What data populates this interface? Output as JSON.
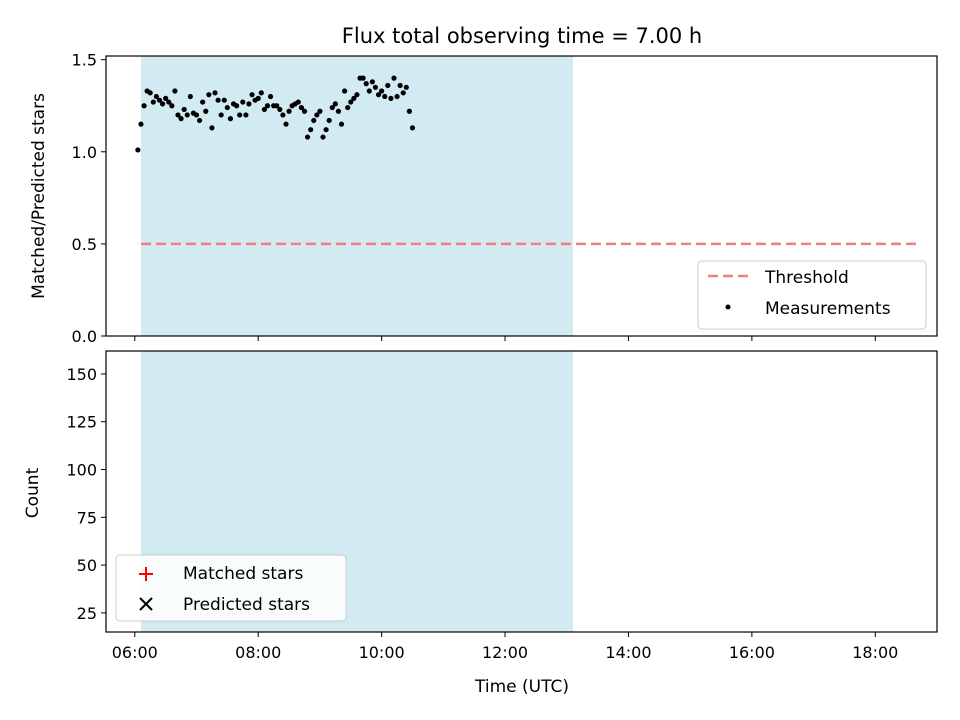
{
  "title": "Flux total observing time = 7.00 h",
  "colors": {
    "observing_span": "#add8e6",
    "threshold": "#f08080",
    "measurements": "#000000",
    "matched": "#ff0000",
    "predicted": "#000000"
  },
  "chart_data": [
    {
      "type": "scatter",
      "ylabel": "Matched/Predicted stars",
      "ylim": [
        0,
        1.52
      ],
      "yticks": [
        0,
        0.5,
        1.0,
        1.5
      ],
      "ytick_labels": [
        "0.0",
        "0.5",
        "1.0",
        "1.5"
      ],
      "xlim": [
        "05:32",
        "19:00"
      ],
      "shaded_span": [
        "06:06",
        "13:06"
      ],
      "threshold": {
        "name": "Threshold",
        "value": 0.5,
        "x_range": [
          "06:06",
          "18:42"
        ],
        "style": "dashed"
      },
      "legend": {
        "position": "lower-right",
        "entries": [
          "Threshold",
          "Measurements"
        ]
      },
      "series": [
        {
          "name": "Measurements",
          "marker": "dot",
          "points": [
            [
              "06:03",
              1.01
            ],
            [
              "06:06",
              1.15
            ],
            [
              "06:09",
              1.25
            ],
            [
              "06:12",
              1.33
            ],
            [
              "06:15",
              1.32
            ],
            [
              "06:18",
              1.27
            ],
            [
              "06:21",
              1.3
            ],
            [
              "06:24",
              1.28
            ],
            [
              "06:27",
              1.26
            ],
            [
              "06:30",
              1.29
            ],
            [
              "06:33",
              1.27
            ],
            [
              "06:36",
              1.25
            ],
            [
              "06:39",
              1.33
            ],
            [
              "06:42",
              1.2
            ],
            [
              "06:45",
              1.18
            ],
            [
              "06:48",
              1.23
            ],
            [
              "06:51",
              1.2
            ],
            [
              "06:54",
              1.3
            ],
            [
              "06:57",
              1.21
            ],
            [
              "07:00",
              1.2
            ],
            [
              "07:03",
              1.17
            ],
            [
              "07:06",
              1.27
            ],
            [
              "07:09",
              1.22
            ],
            [
              "07:12",
              1.31
            ],
            [
              "07:15",
              1.13
            ],
            [
              "07:18",
              1.32
            ],
            [
              "07:21",
              1.28
            ],
            [
              "07:24",
              1.2
            ],
            [
              "07:27",
              1.28
            ],
            [
              "07:30",
              1.24
            ],
            [
              "07:33",
              1.18
            ],
            [
              "07:36",
              1.26
            ],
            [
              "07:39",
              1.25
            ],
            [
              "07:42",
              1.2
            ],
            [
              "07:45",
              1.27
            ],
            [
              "07:48",
              1.2
            ],
            [
              "07:51",
              1.26
            ],
            [
              "07:54",
              1.31
            ],
            [
              "07:57",
              1.28
            ],
            [
              "08:00",
              1.29
            ],
            [
              "08:03",
              1.32
            ],
            [
              "08:06",
              1.23
            ],
            [
              "08:09",
              1.25
            ],
            [
              "08:12",
              1.3
            ],
            [
              "08:15",
              1.25
            ],
            [
              "08:18",
              1.25
            ],
            [
              "08:21",
              1.23
            ],
            [
              "08:24",
              1.2
            ],
            [
              "08:27",
              1.15
            ],
            [
              "08:30",
              1.22
            ],
            [
              "08:33",
              1.25
            ],
            [
              "08:36",
              1.26
            ],
            [
              "08:39",
              1.27
            ],
            [
              "08:42",
              1.24
            ],
            [
              "08:45",
              1.22
            ],
            [
              "08:48",
              1.08
            ],
            [
              "08:51",
              1.12
            ],
            [
              "08:54",
              1.17
            ],
            [
              "08:57",
              1.2
            ],
            [
              "09:00",
              1.22
            ],
            [
              "09:03",
              1.08
            ],
            [
              "09:06",
              1.12
            ],
            [
              "09:09",
              1.17
            ],
            [
              "09:12",
              1.24
            ],
            [
              "09:15",
              1.26
            ],
            [
              "09:18",
              1.22
            ],
            [
              "09:21",
              1.15
            ],
            [
              "09:24",
              1.33
            ],
            [
              "09:27",
              1.24
            ],
            [
              "09:30",
              1.27
            ],
            [
              "09:33",
              1.29
            ],
            [
              "09:36",
              1.31
            ],
            [
              "09:39",
              1.4
            ],
            [
              "09:42",
              1.4
            ],
            [
              "09:45",
              1.37
            ],
            [
              "09:48",
              1.33
            ],
            [
              "09:51",
              1.38
            ],
            [
              "09:54",
              1.35
            ],
            [
              "09:57",
              1.31
            ],
            [
              "10:00",
              1.33
            ],
            [
              "10:03",
              1.3
            ],
            [
              "10:06",
              1.36
            ],
            [
              "10:09",
              1.29
            ],
            [
              "10:12",
              1.4
            ],
            [
              "10:15",
              1.3
            ],
            [
              "10:18",
              1.36
            ],
            [
              "10:21",
              1.32
            ],
            [
              "10:24",
              1.35
            ],
            [
              "10:27",
              1.22
            ],
            [
              "10:30",
              1.13
            ]
          ]
        }
      ]
    },
    {
      "type": "scatter",
      "xlabel": "Time (UTC)",
      "ylabel": "Count",
      "ylim": [
        15,
        162
      ],
      "yticks": [
        25,
        50,
        75,
        100,
        125,
        150
      ],
      "xlim": [
        "05:32",
        "19:00"
      ],
      "xticks": [
        "06:00",
        "08:00",
        "10:00",
        "12:00",
        "14:00",
        "16:00",
        "18:00"
      ],
      "shaded_span": [
        "06:06",
        "13:06"
      ],
      "legend": {
        "position": "lower-left",
        "entries": [
          "Matched stars",
          "Predicted stars"
        ]
      },
      "series": [
        {
          "name": "Matched stars",
          "marker": "plus",
          "points": []
        },
        {
          "name": "Predicted stars",
          "marker": "x",
          "points": []
        }
      ]
    }
  ]
}
